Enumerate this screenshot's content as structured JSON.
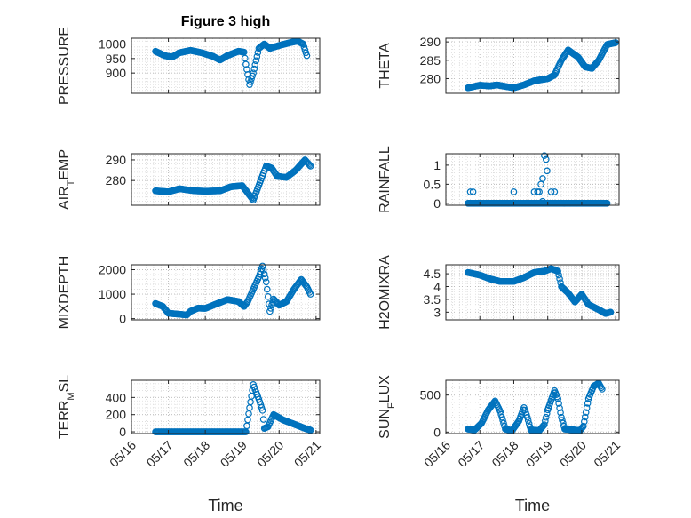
{
  "figure": {
    "background": "#ffffff",
    "marker_color": "#0072bd",
    "axes_color": "#262626",
    "grid": "dotted, major and minor",
    "marker": "open circle"
  },
  "chart_data": [
    {
      "type": "scatter",
      "title": "Figure 3 high",
      "ylabel": "PRESSURE",
      "ylabel_sub": "",
      "ylabel_after": "",
      "xlim": [
        0,
        5.1
      ],
      "ylim": [
        830,
        1020
      ],
      "yticks": [
        900,
        950,
        1000
      ],
      "ytick_labels": [
        "900",
        "950",
        "1000"
      ],
      "x_tick_labels_shown": false,
      "curve": [
        [
          0.65,
          975
        ],
        [
          0.9,
          960
        ],
        [
          1.1,
          955
        ],
        [
          1.3,
          970
        ],
        [
          1.6,
          978
        ],
        [
          1.9,
          970
        ],
        [
          2.2,
          958
        ],
        [
          2.4,
          945
        ],
        [
          2.6,
          960
        ],
        [
          2.9,
          975
        ],
        [
          3.05,
          972
        ],
        [
          3.1,
          930
        ],
        [
          3.2,
          860
        ],
        [
          3.3,
          900
        ],
        [
          3.45,
          985
        ],
        [
          3.6,
          1000
        ],
        [
          3.75,
          985
        ],
        [
          4.0,
          995
        ],
        [
          4.3,
          1005
        ],
        [
          4.5,
          1010
        ],
        [
          4.65,
          1000
        ],
        [
          4.75,
          960
        ]
      ]
    },
    {
      "type": "scatter",
      "title": "",
      "ylabel": "THETA",
      "ylabel_sub": "",
      "ylabel_after": "",
      "xlim": [
        0,
        5.1
      ],
      "ylim": [
        276,
        291
      ],
      "yticks": [
        280,
        285,
        290
      ],
      "ytick_labels": [
        "280",
        "285",
        "290"
      ],
      "x_tick_labels_shown": false,
      "curve": [
        [
          0.65,
          277.5
        ],
        [
          1.0,
          278.2
        ],
        [
          1.3,
          278
        ],
        [
          1.5,
          278.3
        ],
        [
          1.8,
          277.8
        ],
        [
          2.0,
          277.5
        ],
        [
          2.3,
          278.3
        ],
        [
          2.6,
          279.4
        ],
        [
          3.0,
          280
        ],
        [
          3.2,
          281
        ],
        [
          3.4,
          285
        ],
        [
          3.6,
          287.8
        ],
        [
          3.9,
          285.8
        ],
        [
          4.1,
          283.2
        ],
        [
          4.3,
          282.8
        ],
        [
          4.5,
          285
        ],
        [
          4.75,
          289.3
        ],
        [
          5.0,
          289.8
        ]
      ]
    },
    {
      "type": "scatter",
      "title": "",
      "ylabel": "AIR",
      "ylabel_sub": "T",
      "ylabel_after": "EMP",
      "xlim": [
        0,
        5.1
      ],
      "ylim": [
        268,
        293
      ],
      "yticks": [
        280,
        290
      ],
      "ytick_labels": [
        "280",
        "290"
      ],
      "x_tick_labels_shown": false,
      "curve": [
        [
          0.65,
          275
        ],
        [
          1.0,
          274.5
        ],
        [
          1.3,
          276
        ],
        [
          1.7,
          275
        ],
        [
          2.0,
          274.8
        ],
        [
          2.4,
          275
        ],
        [
          2.7,
          277
        ],
        [
          3.0,
          277.5
        ],
        [
          3.15,
          274
        ],
        [
          3.3,
          270.5
        ],
        [
          3.5,
          280
        ],
        [
          3.65,
          287
        ],
        [
          3.8,
          286
        ],
        [
          3.95,
          282
        ],
        [
          4.2,
          281.5
        ],
        [
          4.45,
          285
        ],
        [
          4.7,
          290
        ],
        [
          4.85,
          287
        ]
      ]
    },
    {
      "type": "scatter",
      "title": "",
      "ylabel": "RAINFALL",
      "ylabel_sub": "",
      "ylabel_after": "",
      "xlim": [
        0,
        5.1
      ],
      "ylim": [
        -0.05,
        1.3
      ],
      "yticks": [
        0,
        0.5,
        1
      ],
      "ytick_labels": [
        "0",
        "0.5",
        "1"
      ],
      "x_tick_labels_shown": false,
      "baseline": 0,
      "curve": [
        [
          0.65,
          0
        ],
        [
          4.75,
          0
        ]
      ],
      "points": [
        [
          0.72,
          0.3
        ],
        [
          0.8,
          0.3
        ],
        [
          2.0,
          0.3
        ],
        [
          2.6,
          0.3
        ],
        [
          2.7,
          0.3
        ],
        [
          2.75,
          0.3
        ],
        [
          2.8,
          0.5
        ],
        [
          2.85,
          0.65
        ],
        [
          2.9,
          1.25
        ],
        [
          2.95,
          1.15
        ],
        [
          2.98,
          0.85
        ],
        [
          3.1,
          0.3
        ],
        [
          3.2,
          0.3
        ],
        [
          2.85,
          0.05
        ]
      ]
    },
    {
      "type": "scatter",
      "title": "",
      "ylabel": "MIXDEPTH",
      "ylabel_sub": "",
      "ylabel_after": "",
      "xlim": [
        0,
        5.1
      ],
      "ylim": [
        -50,
        2200
      ],
      "yticks": [
        0,
        1000,
        2000
      ],
      "ytick_labels": [
        "0",
        "1000",
        "2000"
      ],
      "x_tick_labels_shown": false,
      "curve": [
        [
          0.65,
          620
        ],
        [
          0.85,
          500
        ],
        [
          1.0,
          220
        ],
        [
          1.3,
          180
        ],
        [
          1.5,
          150
        ],
        [
          1.6,
          300
        ],
        [
          1.8,
          430
        ],
        [
          2.0,
          420
        ],
        [
          2.3,
          600
        ],
        [
          2.6,
          780
        ],
        [
          2.9,
          700
        ],
        [
          3.05,
          500
        ],
        [
          3.15,
          700
        ],
        [
          3.3,
          1200
        ],
        [
          3.45,
          1700
        ],
        [
          3.55,
          2150
        ],
        [
          3.65,
          1500
        ],
        [
          3.75,
          300
        ],
        [
          3.85,
          800
        ],
        [
          4.0,
          550
        ],
        [
          4.2,
          700
        ],
        [
          4.4,
          1200
        ],
        [
          4.6,
          1600
        ],
        [
          4.75,
          1300
        ],
        [
          4.85,
          1000
        ]
      ]
    },
    {
      "type": "scatter",
      "title": "",
      "ylabel": "H2OMIXRA",
      "ylabel_sub": "",
      "ylabel_after": "",
      "xlim": [
        0,
        5.1
      ],
      "ylim": [
        2.7,
        4.85
      ],
      "yticks": [
        3,
        3.5,
        4,
        4.5
      ],
      "ytick_labels": [
        "3",
        "3.5",
        "4",
        "4.5"
      ],
      "x_tick_labels_shown": false,
      "curve": [
        [
          0.65,
          4.55
        ],
        [
          1.0,
          4.45
        ],
        [
          1.3,
          4.3
        ],
        [
          1.6,
          4.2
        ],
        [
          2.0,
          4.2
        ],
        [
          2.3,
          4.35
        ],
        [
          2.6,
          4.55
        ],
        [
          2.9,
          4.6
        ],
        [
          3.1,
          4.7
        ],
        [
          3.3,
          4.6
        ],
        [
          3.4,
          4.0
        ],
        [
          3.6,
          3.75
        ],
        [
          3.8,
          3.4
        ],
        [
          4.0,
          3.7
        ],
        [
          4.2,
          3.3
        ],
        [
          4.5,
          3.1
        ],
        [
          4.7,
          2.95
        ],
        [
          4.85,
          3.0
        ]
      ]
    },
    {
      "type": "scatter",
      "title": "",
      "ylabel": "TERR",
      "ylabel_sub": "M",
      "ylabel_after": "SL",
      "xlim": [
        0,
        5.1
      ],
      "ylim": [
        -20,
        600
      ],
      "yticks": [
        0,
        200,
        400
      ],
      "ytick_labels": [
        "0",
        "200",
        "400"
      ],
      "x_tick_labels_shown": true,
      "x_tick_positions": [
        0,
        1,
        2,
        3,
        4,
        5
      ],
      "x_tick_labels": [
        "05/16",
        "05/17",
        "05/18",
        "05/19",
        "05/20",
        "05/21"
      ],
      "xlabel": "Time",
      "curve": [
        [
          0.65,
          0
        ],
        [
          3.0,
          0
        ],
        [
          3.1,
          0
        ],
        [
          3.2,
          280
        ],
        [
          3.3,
          550
        ],
        [
          3.45,
          380
        ],
        [
          3.55,
          250
        ],
        [
          3.6,
          40
        ],
        [
          3.7,
          60
        ],
        [
          3.85,
          200
        ],
        [
          4.1,
          140
        ],
        [
          4.4,
          90
        ],
        [
          4.7,
          40
        ],
        [
          4.85,
          20
        ]
      ]
    },
    {
      "type": "scatter",
      "title": "",
      "ylabel": "SUN",
      "ylabel_sub": "F",
      "ylabel_after": "LUX",
      "xlim": [
        0,
        5.1
      ],
      "ylim": [
        -20,
        700
      ],
      "yticks": [
        0,
        500
      ],
      "ytick_labels": [
        "0",
        "500"
      ],
      "x_tick_labels_shown": true,
      "x_tick_positions": [
        0,
        1,
        2,
        3,
        4,
        5
      ],
      "x_tick_labels": [
        "05/16",
        "05/17",
        "05/18",
        "05/19",
        "05/20",
        "05/21"
      ],
      "xlabel": "Time",
      "curve": [
        [
          0.65,
          40
        ],
        [
          0.85,
          30
        ],
        [
          1.05,
          120
        ],
        [
          1.25,
          300
        ],
        [
          1.45,
          420
        ],
        [
          1.6,
          280
        ],
        [
          1.75,
          40
        ],
        [
          1.95,
          20
        ],
        [
          2.15,
          150
        ],
        [
          2.3,
          330
        ],
        [
          2.4,
          200
        ],
        [
          2.5,
          30
        ],
        [
          2.75,
          20
        ],
        [
          2.9,
          100
        ],
        [
          3.0,
          300
        ],
        [
          3.2,
          560
        ],
        [
          3.3,
          450
        ],
        [
          3.4,
          200
        ],
        [
          3.5,
          40
        ],
        [
          3.75,
          30
        ],
        [
          3.95,
          20
        ],
        [
          4.05,
          80
        ],
        [
          4.2,
          450
        ],
        [
          4.35,
          620
        ],
        [
          4.5,
          660
        ],
        [
          4.6,
          580
        ]
      ]
    }
  ]
}
